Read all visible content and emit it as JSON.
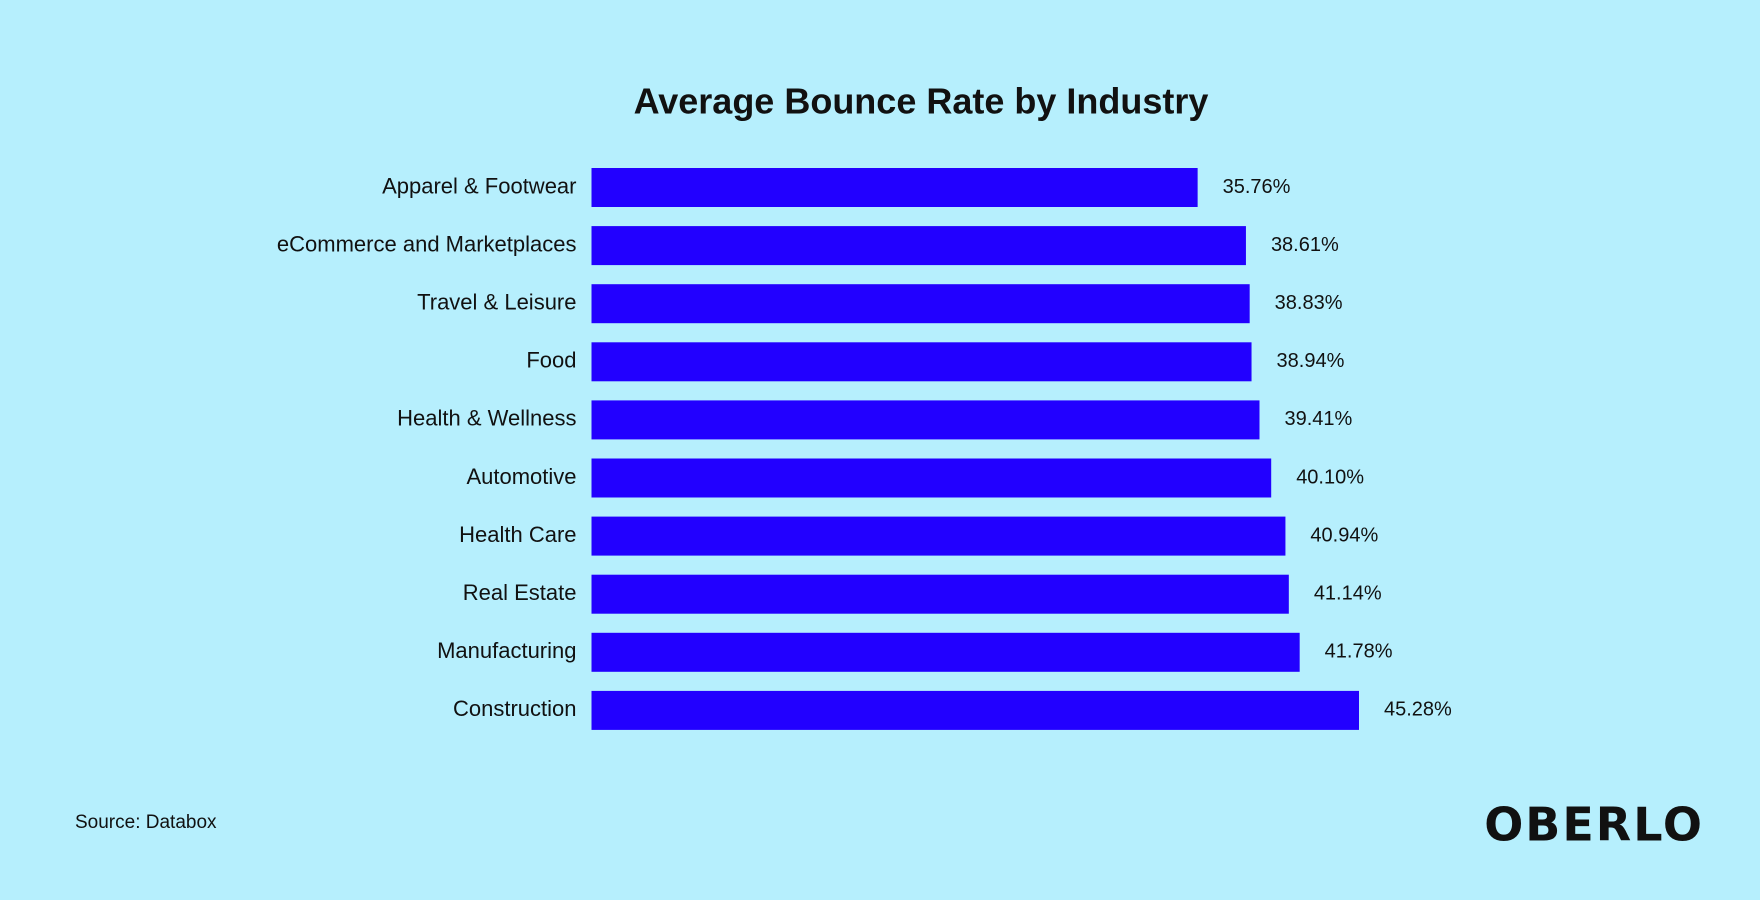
{
  "chart_data": {
    "type": "bar",
    "orientation": "horizontal",
    "title": "Average Bounce Rate by Industry",
    "categories": [
      "Apparel & Footwear",
      "eCommerce and Marketplaces",
      "Travel & Leisure",
      "Food",
      "Health & Wellness",
      "Automotive",
      "Health Care",
      "Real Estate",
      "Manufacturing",
      "Construction"
    ],
    "values": [
      35.76,
      38.61,
      38.83,
      38.94,
      39.41,
      40.1,
      40.94,
      41.14,
      41.78,
      45.28
    ],
    "value_labels": [
      "35.76%",
      "38.61%",
      "38.83%",
      "38.94%",
      "39.41%",
      "40.10%",
      "40.94%",
      "41.14%",
      "41.78%",
      "45.28%"
    ],
    "color": "#2200ff"
  },
  "source": "Source: Databox",
  "logo": "OBERLO"
}
